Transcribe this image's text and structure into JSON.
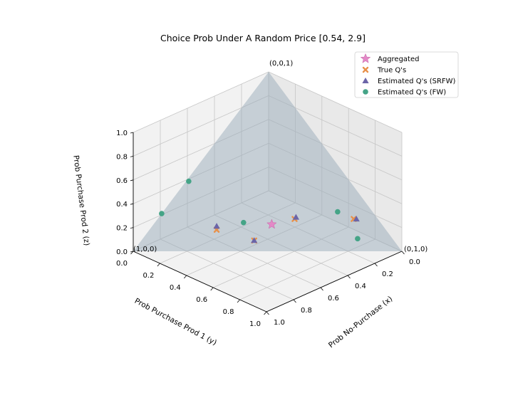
{
  "chart_data": {
    "type": "scatter",
    "projection": "3d",
    "title": "Choice Prob Under A Random Price [0.54, 2.9]",
    "xlabel": "Prob No-Purchase (x)",
    "ylabel": "Prob Purchase Prod 1 (y)",
    "zlabel": "Prob Purchase Prod 2 (z)",
    "xlim": [
      0,
      1
    ],
    "ylim": [
      0,
      1
    ],
    "zlim": [
      0,
      1
    ],
    "xticks": [
      "0.0",
      "0.2",
      "0.4",
      "0.6",
      "0.8",
      "1.0"
    ],
    "yticks": [
      "0.0",
      "0.2",
      "0.4",
      "0.6",
      "0.8",
      "1.0"
    ],
    "zticks": [
      "0.0",
      "0.2",
      "0.4",
      "0.6",
      "0.8",
      "1.0"
    ],
    "grid": true,
    "legend_position": "top-right",
    "simplex": {
      "color": "#9aabb9",
      "vertex_labels": [
        {
          "text": "(1,0,0)",
          "x": 1,
          "y": 0,
          "z": 0
        },
        {
          "text": "(0,1,0)",
          "x": 0,
          "y": 1,
          "z": 0
        },
        {
          "text": "(0,0,1)",
          "x": 0,
          "y": 0,
          "z": 1
        }
      ]
    },
    "series": [
      {
        "name": "Aggregated",
        "marker": "star",
        "color": "#e389c7",
        "points": [
          [
            0.41,
            0.44,
            0.15
          ]
        ]
      },
      {
        "name": "True Q's",
        "marker": "x",
        "color": "#e8914a",
        "points": [
          [
            0.63,
            0.25,
            0.12
          ],
          [
            0.31,
            0.51,
            0.18
          ],
          [
            0.09,
            0.73,
            0.18
          ],
          [
            0.52,
            0.42,
            0.06
          ]
        ]
      },
      {
        "name": "Estimated Q's (SRFW)",
        "marker": "triangle",
        "color": "#6b65a8",
        "points": [
          [
            0.62,
            0.24,
            0.14
          ],
          [
            0.3,
            0.51,
            0.19
          ],
          [
            0.08,
            0.74,
            0.18
          ],
          [
            0.52,
            0.42,
            0.06
          ]
        ]
      },
      {
        "name": "Estimated Q's (FW)",
        "marker": "circle",
        "color": "#45a487",
        "points": [
          [
            0.79,
            0.0,
            0.21
          ],
          [
            0.6,
            0.01,
            0.39
          ],
          [
            0.13,
            0.8,
            0.07
          ],
          [
            0.51,
            0.33,
            0.16
          ],
          [
            0.13,
            0.65,
            0.22
          ]
        ]
      }
    ]
  }
}
